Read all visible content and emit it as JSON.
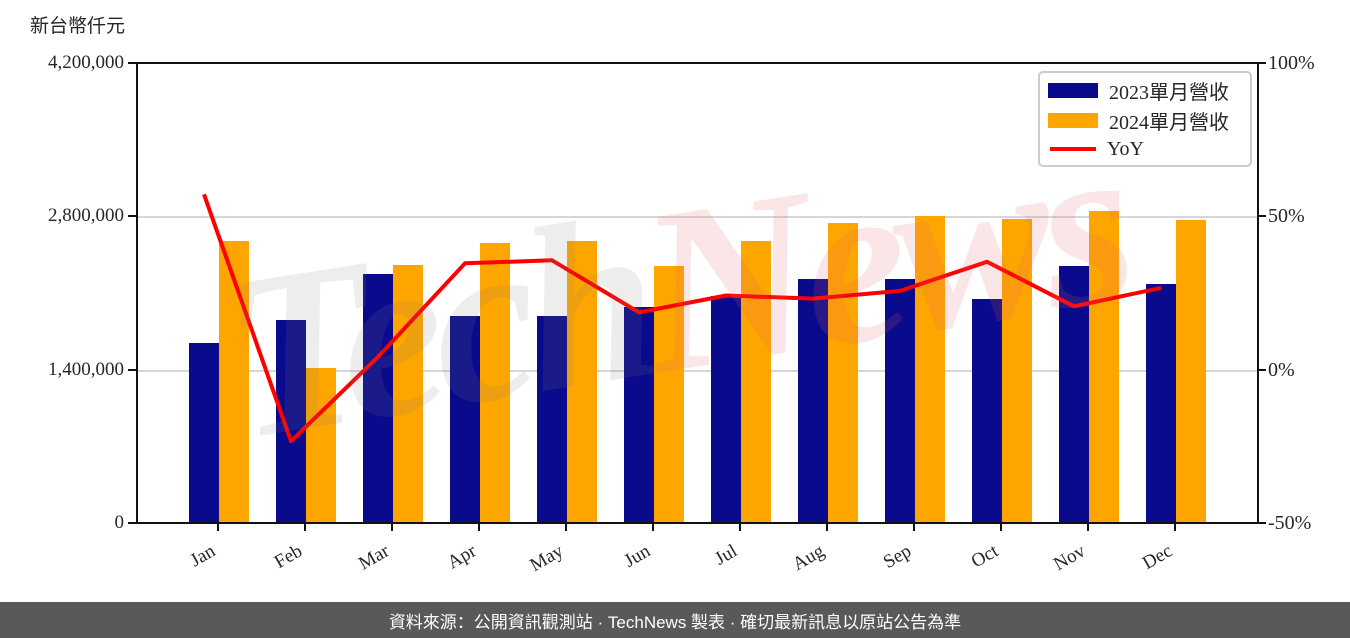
{
  "chart": {
    "unit_label": "新台幣仟元"
  },
  "caption": {
    "text": "資料來源：公開資訊觀測站 · TechNews 製表 · 確切最新訊息以原站公告為準"
  },
  "watermark": {
    "tech": "Tech",
    "news": "News"
  },
  "legend": {
    "items": [
      {
        "label": "2023單月營收"
      },
      {
        "label": "2024單月營收"
      },
      {
        "label": "YoY"
      }
    ]
  },
  "colors": {
    "bar2023": "#0a0a8c",
    "bar2024": "#ffa500",
    "yoy": "#ff0000",
    "caption_bg": "#595959",
    "grid": "#d6d6d6",
    "axis": "#111111"
  },
  "chart_data": {
    "type": "bar",
    "title": "",
    "xlabel": "",
    "ylabel": "新台幣仟元",
    "grid": "horizontal",
    "legend_position": "upper right",
    "categories": [
      "Jan",
      "Feb",
      "Mar",
      "Apr",
      "May",
      "Jun",
      "Jul",
      "Aug",
      "Sep",
      "Oct",
      "Nov",
      "Dec"
    ],
    "series": [
      {
        "name": "2023單月營收",
        "year": "2023",
        "color_key": "bar2023",
        "values": [
          1630000,
          1840000,
          2260000,
          1885000,
          1885000,
          1960000,
          2060000,
          2215000,
          2215000,
          2040000,
          2335000,
          2170000
        ]
      },
      {
        "name": "2024單月營收",
        "year": "2024",
        "color_key": "bar2024",
        "values": [
          2570000,
          1405000,
          2350000,
          2545000,
          2565000,
          2335000,
          2565000,
          2730000,
          2790000,
          2765000,
          2840000,
          2755000
        ]
      }
    ],
    "line": {
      "name": "YoY",
      "type": "line",
      "color_key": "yoy",
      "values_pct": [
        57.5,
        -23,
        4.5,
        35,
        36,
        19,
        24.5,
        23.5,
        26,
        35.5,
        21,
        27
      ]
    },
    "y_left": {
      "min": 0,
      "max": 4200000,
      "ticks": [
        {
          "label": "4,200,000",
          "value": 4200000
        },
        {
          "label": "2,800,000",
          "value": 2800000
        },
        {
          "label": "1,400,000",
          "value": 1400000
        },
        {
          "label": "0",
          "value": 0
        }
      ]
    },
    "y_right": {
      "min": -50,
      "max": 100,
      "ticks": [
        {
          "label": "100%",
          "value": 100
        },
        {
          "label": "50%",
          "value": 50
        },
        {
          "label": "0%",
          "value": 0
        },
        {
          "label": "-50%",
          "value": -50
        }
      ]
    }
  }
}
